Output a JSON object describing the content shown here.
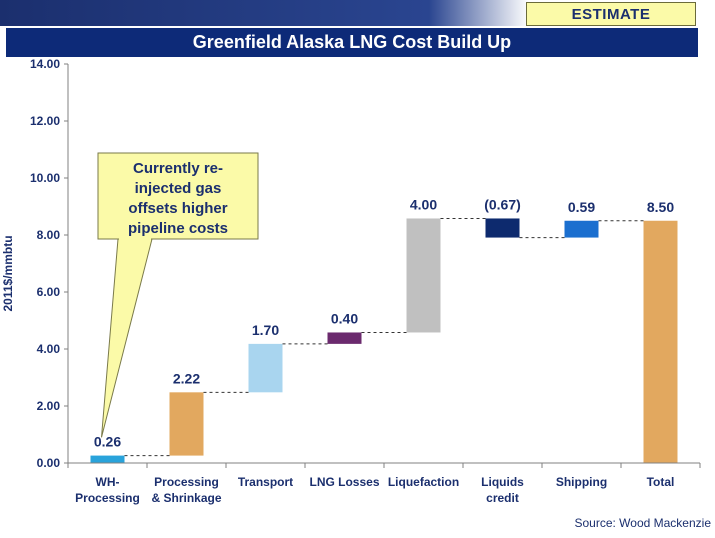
{
  "badge": "ESTIMATE",
  "source": "Source: Wood Mackenzie",
  "colors": {
    "title_bg": "#0d2a78",
    "badge_bg": "#fbfaa8",
    "callout_bg": "#fbfaa8",
    "axis_text": "#1b2f6e"
  },
  "chart_data": {
    "type": "bar",
    "subtype": "waterfall",
    "title": "Greenfield Alaska LNG Cost Build Up",
    "ylabel": "2011$/mmbtu",
    "ylim": [
      0,
      14
    ],
    "yticks": [
      "0.00",
      "2.00",
      "4.00",
      "6.00",
      "8.00",
      "10.00",
      "12.00",
      "14.00"
    ],
    "grid": false,
    "categories": [
      "WH-\nProcessing",
      "Processing\n& Shrinkage",
      "Transport",
      "LNG Losses",
      "Liquefaction",
      "Liquids\ncredit",
      "Shipping",
      "Total"
    ],
    "values": [
      0.26,
      2.22,
      1.7,
      0.4,
      4.0,
      -0.67,
      0.59,
      8.5
    ],
    "value_labels": [
      "0.26",
      "2.22",
      "1.70",
      "0.40",
      "4.00",
      "(0.67)",
      "0.59",
      "8.50"
    ],
    "ranges": [
      [
        0.0,
        0.26
      ],
      [
        0.26,
        2.48
      ],
      [
        2.48,
        4.18
      ],
      [
        4.18,
        4.58
      ],
      [
        4.58,
        8.58
      ],
      [
        7.91,
        8.58
      ],
      [
        7.91,
        8.5
      ],
      [
        0.0,
        8.5
      ]
    ],
    "bar_colors": [
      "#29a3db",
      "#e2a85f",
      "#a9d5ef",
      "#6b2a6e",
      "#c0c0c0",
      "#0d2a6e",
      "#1b6fcf",
      "#e2a85f"
    ],
    "annotation": "Currently re-\ninjected gas\noffsets higher\npipeline costs"
  }
}
